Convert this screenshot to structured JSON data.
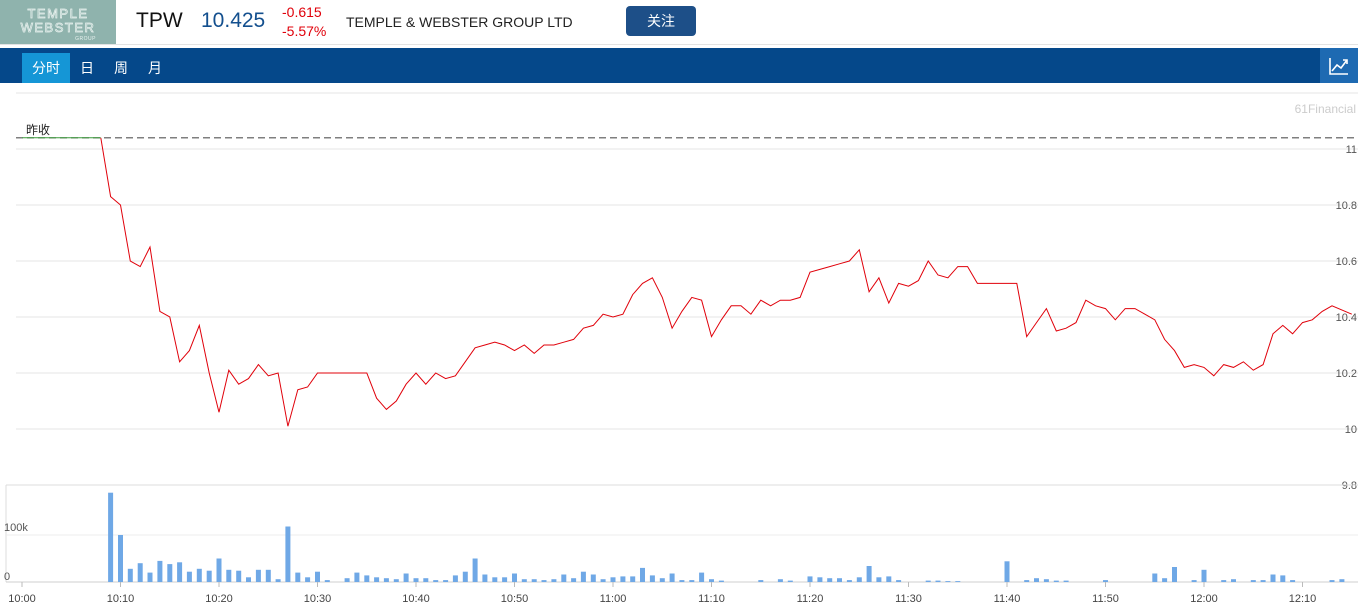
{
  "header": {
    "logo_text": [
      "TEMPLE",
      "WEBSTER",
      "GROUP"
    ],
    "ticker": "TPW",
    "price": "10.425",
    "change": "-0.615",
    "change_pct": "-5.57%",
    "company": "TEMPLE & WEBSTER GROUP LTD",
    "follow_label": "关注"
  },
  "tabs": [
    {
      "label": "分时",
      "active": true
    },
    {
      "label": "日",
      "active": false
    },
    {
      "label": "周",
      "active": false
    },
    {
      "label": "月",
      "active": false
    }
  ],
  "chart_icon": "line-chart-icon",
  "colors": {
    "accent": "#05488a",
    "active_tab": "#1596d6",
    "price_line": "#e0000a",
    "volume_bar": "#6fa8e6",
    "prev_close_line": "#555555"
  },
  "chart_data": [
    {
      "type": "line",
      "watermark": "61Financial",
      "reference_label": "昨收",
      "prev_close": 11.04,
      "ylim": [
        9.8,
        11.1
      ],
      "yticks": [
        "11",
        "10.8",
        "10.6",
        "10.4",
        "10.2",
        "10",
        "9.8"
      ],
      "x_start": "10:00",
      "x_end": "12:15",
      "series": [
        {
          "x": [
            "10:00",
            "10:08",
            "10:09",
            "10:10",
            "10:11",
            "10:12",
            "10:13",
            "10:14",
            "10:15",
            "10:16",
            "10:17",
            "10:18",
            "10:19",
            "10:20",
            "10:21",
            "10:22",
            "10:23",
            "10:24",
            "10:25",
            "10:26",
            "10:27",
            "10:28",
            "10:29",
            "10:30",
            "10:31",
            "10:32",
            "10:33",
            "10:34",
            "10:35",
            "10:36",
            "10:37",
            "10:38",
            "10:39",
            "10:40",
            "10:41",
            "10:42",
            "10:43",
            "10:44",
            "10:46",
            "10:47",
            "10:48",
            "10:49",
            "10:50",
            "10:51",
            "10:52",
            "10:53",
            "10:54",
            "10:55",
            "10:56",
            "10:57",
            "10:58",
            "10:59",
            "11:00",
            "11:01",
            "11:02",
            "11:03",
            "11:04",
            "11:05",
            "11:06",
            "11:07",
            "11:08",
            "11:09",
            "11:10",
            "11:11",
            "11:12",
            "11:13",
            "11:14",
            "11:15",
            "11:16",
            "11:17",
            "11:18",
            "11:19",
            "11:20",
            "11:21",
            "11:22",
            "11:23",
            "11:24",
            "11:25",
            "11:26",
            "11:27",
            "11:28",
            "11:29",
            "11:30",
            "11:31",
            "11:32",
            "11:33",
            "11:34",
            "11:35",
            "11:36",
            "11:37",
            "11:38",
            "11:39",
            "11:40",
            "11:41",
            "11:42",
            "11:43",
            "11:44",
            "11:45",
            "11:46",
            "11:47",
            "11:48",
            "11:49",
            "11:50",
            "11:51",
            "11:52",
            "11:53",
            "11:54",
            "11:55",
            "11:56",
            "11:57",
            "11:58",
            "11:59",
            "12:00",
            "12:01",
            "12:02",
            "12:03",
            "12:04",
            "12:05",
            "12:06",
            "12:07",
            "12:08",
            "12:09",
            "12:10",
            "12:11",
            "12:12",
            "12:13",
            "12:15"
          ],
          "values": [
            11.04,
            11.04,
            10.83,
            10.8,
            10.6,
            10.58,
            10.65,
            10.42,
            10.4,
            10.24,
            10.28,
            10.37,
            10.2,
            10.06,
            10.21,
            10.16,
            10.18,
            10.23,
            10.19,
            10.2,
            10.01,
            10.14,
            10.15,
            10.2,
            10.2,
            10.2,
            10.2,
            10.2,
            10.2,
            10.11,
            10.07,
            10.1,
            10.16,
            10.2,
            10.16,
            10.2,
            10.18,
            10.19,
            10.29,
            10.3,
            10.31,
            10.3,
            10.28,
            10.3,
            10.27,
            10.3,
            10.3,
            10.31,
            10.32,
            10.36,
            10.37,
            10.41,
            10.4,
            10.41,
            10.48,
            10.52,
            10.54,
            10.47,
            10.36,
            10.42,
            10.47,
            10.46,
            10.33,
            10.39,
            10.44,
            10.44,
            10.41,
            10.46,
            10.44,
            10.46,
            10.46,
            10.47,
            10.56,
            10.57,
            10.58,
            10.59,
            10.6,
            10.64,
            10.49,
            10.54,
            10.45,
            10.52,
            10.51,
            10.53,
            10.6,
            10.55,
            10.54,
            10.58,
            10.58,
            10.52,
            10.52,
            10.52,
            10.52,
            10.52,
            10.33,
            10.38,
            10.43,
            10.35,
            10.36,
            10.38,
            10.46,
            10.44,
            10.43,
            10.39,
            10.43,
            10.43,
            10.41,
            10.39,
            10.32,
            10.28,
            10.22,
            10.23,
            10.22,
            10.19,
            10.23,
            10.22,
            10.24,
            10.21,
            10.23,
            10.34,
            10.37,
            10.34,
            10.38,
            10.39,
            10.42,
            10.44,
            10.41
          ]
        }
      ]
    },
    {
      "type": "bar",
      "yticks": [
        "100k",
        "0"
      ],
      "xticks": [
        "10:00",
        "10:10",
        "10:20",
        "10:30",
        "10:40",
        "10:50",
        "11:00",
        "11:10",
        "11:20",
        "11:30",
        "11:40",
        "11:50",
        "12:00",
        "12:10"
      ],
      "series": [
        {
          "x": [
            "10:09",
            "10:10",
            "10:11",
            "10:12",
            "10:13",
            "10:14",
            "10:15",
            "10:16",
            "10:17",
            "10:18",
            "10:19",
            "10:20",
            "10:21",
            "10:22",
            "10:23",
            "10:24",
            "10:25",
            "10:26",
            "10:27",
            "10:28",
            "10:29",
            "10:30",
            "10:31",
            "10:33",
            "10:34",
            "10:35",
            "10:36",
            "10:37",
            "10:38",
            "10:39",
            "10:40",
            "10:41",
            "10:42",
            "10:43",
            "10:44",
            "10:45",
            "10:46",
            "10:47",
            "10:48",
            "10:49",
            "10:50",
            "10:51",
            "10:52",
            "10:53",
            "10:54",
            "10:55",
            "10:56",
            "10:57",
            "10:58",
            "10:59",
            "11:00",
            "11:01",
            "11:02",
            "11:03",
            "11:04",
            "11:05",
            "11:06",
            "11:07",
            "11:08",
            "11:09",
            "11:10",
            "11:11",
            "11:15",
            "11:17",
            "11:18",
            "11:20",
            "11:21",
            "11:22",
            "11:23",
            "11:24",
            "11:25",
            "11:26",
            "11:27",
            "11:28",
            "11:29",
            "11:32",
            "11:33",
            "11:34",
            "11:35",
            "11:40",
            "11:42",
            "11:43",
            "11:44",
            "11:45",
            "11:46",
            "11:50",
            "11:55",
            "11:56",
            "11:57",
            "11:59",
            "12:00",
            "12:02",
            "12:03",
            "12:05",
            "12:06",
            "12:07",
            "12:08",
            "12:09",
            "12:13",
            "12:14"
          ],
          "values": [
            190000,
            100000,
            28000,
            40000,
            20000,
            45000,
            38000,
            42000,
            22000,
            28000,
            24000,
            50000,
            26000,
            24000,
            10000,
            26000,
            26000,
            6000,
            118000,
            20000,
            10000,
            22000,
            4000,
            8000,
            20000,
            14000,
            10000,
            8000,
            6000,
            18000,
            8000,
            8000,
            4000,
            4000,
            14000,
            22000,
            50000,
            16000,
            10000,
            10000,
            18000,
            6000,
            6000,
            4000,
            6000,
            16000,
            8000,
            22000,
            16000,
            6000,
            10000,
            12000,
            12000,
            30000,
            14000,
            8000,
            18000,
            4000,
            4000,
            20000,
            6000,
            3000,
            4000,
            6000,
            3000,
            12000,
            10000,
            8000,
            8000,
            4000,
            10000,
            34000,
            10000,
            12000,
            4000,
            3000,
            3000,
            2000,
            2000,
            44000,
            4000,
            8000,
            6000,
            3000,
            3000,
            4000,
            18000,
            8000,
            32000,
            4000,
            26000,
            4000,
            6000,
            4000,
            4000,
            16000,
            14000,
            4000,
            4000,
            6000
          ]
        }
      ]
    }
  ]
}
